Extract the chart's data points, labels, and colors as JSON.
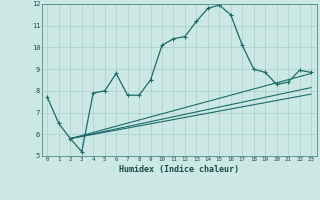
{
  "xlabel": "Humidex (Indice chaleur)",
  "bg_color": "#cce8e4",
  "grid_color": "#aacfcc",
  "line_color": "#1a6b6b",
  "xlim": [
    -0.5,
    23.5
  ],
  "ylim": [
    5,
    12
  ],
  "xticks": [
    0,
    1,
    2,
    3,
    4,
    5,
    6,
    7,
    8,
    9,
    10,
    11,
    12,
    13,
    14,
    15,
    16,
    17,
    18,
    19,
    20,
    21,
    22,
    23
  ],
  "yticks": [
    5,
    6,
    7,
    8,
    9,
    10,
    11,
    12
  ],
  "main_line_x": [
    0,
    1,
    2,
    3,
    4,
    5,
    6,
    7,
    8,
    9,
    10,
    11,
    12,
    13,
    14,
    15,
    16,
    17,
    18,
    19,
    20,
    21,
    22,
    23
  ],
  "main_line_y": [
    7.7,
    6.5,
    5.8,
    5.2,
    7.9,
    8.0,
    8.8,
    7.8,
    7.8,
    8.5,
    10.1,
    10.4,
    10.5,
    11.2,
    11.8,
    11.95,
    11.5,
    10.1,
    9.0,
    8.85,
    8.3,
    8.4,
    8.95,
    8.85
  ],
  "trend_line1_x": [
    2,
    23
  ],
  "trend_line1_y": [
    5.8,
    8.8
  ],
  "trend_line2_x": [
    2,
    23
  ],
  "trend_line2_y": [
    5.8,
    8.15
  ],
  "trend_line3_x": [
    2,
    23
  ],
  "trend_line3_y": [
    5.8,
    7.85
  ]
}
